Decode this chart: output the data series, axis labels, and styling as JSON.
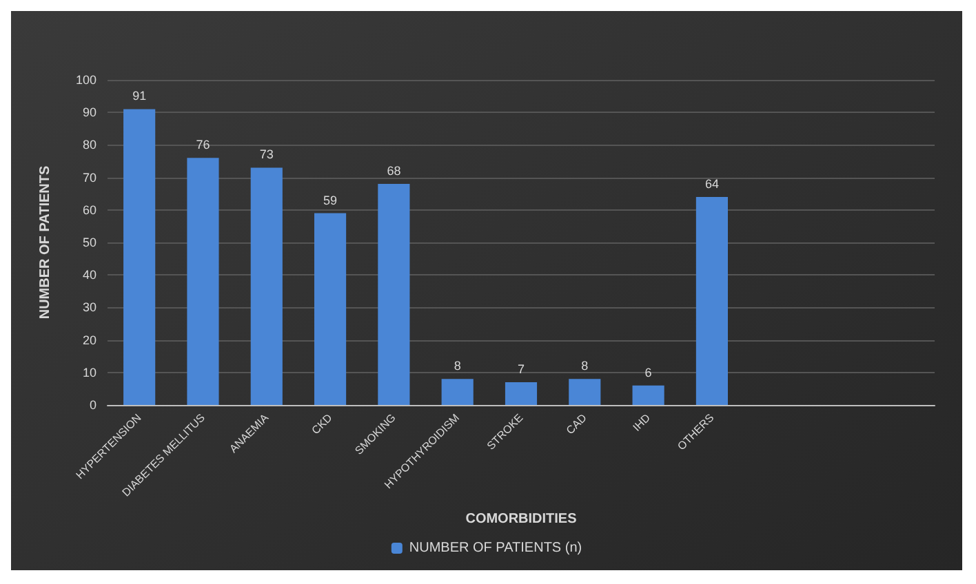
{
  "chart_data": {
    "type": "bar",
    "xlabel": "COMORBIDITIES",
    "ylabel": "NUMBER OF PATIENTS",
    "categories": [
      "HYPERTENSION",
      "DIABETES MELLITUS",
      "ANAEMIA",
      "CKD",
      "SMOKING",
      "HYPOTHYROIDISM",
      "STROKE",
      "CAD",
      "IHD",
      "OTHERS",
      null,
      null,
      null
    ],
    "series": [
      {
        "name": "NUMBER OF PATIENTS (n)",
        "color": "#4a86d6",
        "values": [
          91,
          76,
          73,
          59,
          68,
          8,
          7,
          8,
          6,
          64,
          null,
          null,
          null
        ]
      }
    ],
    "ylim": [
      0,
      100
    ],
    "yticks": [
      0,
      10,
      20,
      30,
      40,
      50,
      60,
      70,
      80,
      90,
      100
    ],
    "grid": "y",
    "legend": "bottom",
    "data_labels": true
  }
}
